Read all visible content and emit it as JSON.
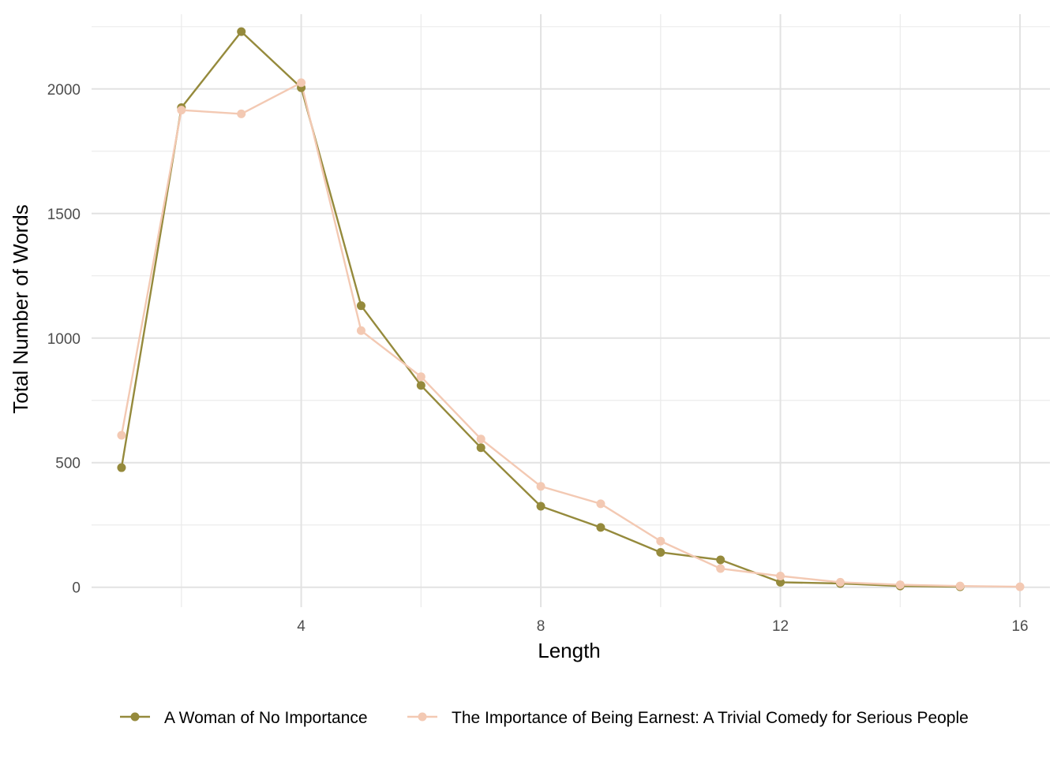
{
  "chart_data": {
    "type": "line",
    "title": "",
    "xlabel": "Length",
    "ylabel": "Total Number of Words",
    "xlim": [
      0.5,
      16.5
    ],
    "ylim": [
      -80,
      2300
    ],
    "x_ticks_major": [
      4,
      8,
      12,
      16
    ],
    "x_ticks_major_labels": [
      "4",
      "8",
      "12",
      "16"
    ],
    "x_ticks_minor": [
      2,
      6,
      10,
      14
    ],
    "y_ticks_major": [
      0,
      500,
      1000,
      1500,
      2000
    ],
    "y_ticks_major_labels": [
      "0",
      "500",
      "1000",
      "1500",
      "2000"
    ],
    "y_ticks_minor": [
      250,
      750,
      1250,
      1750,
      2250
    ],
    "grid": true,
    "legend_position": "bottom",
    "series": [
      {
        "name": "A Woman of No Importance",
        "color": "#958a3c",
        "x": [
          1,
          2,
          3,
          4,
          5,
          6,
          7,
          8,
          9,
          10,
          11,
          12,
          13,
          14,
          15
        ],
        "values": [
          480,
          1925,
          2230,
          2005,
          1130,
          810,
          560,
          325,
          240,
          140,
          110,
          20,
          15,
          5,
          2
        ]
      },
      {
        "name": "The Importance of Being Earnest: A Trivial Comedy for Serious People",
        "color": "#f3c9b3",
        "x": [
          1,
          2,
          3,
          4,
          5,
          6,
          7,
          8,
          9,
          10,
          11,
          12,
          13,
          14,
          15,
          16
        ],
        "values": [
          610,
          1915,
          1900,
          2025,
          1030,
          845,
          595,
          405,
          335,
          185,
          75,
          45,
          20,
          10,
          5,
          2
        ]
      }
    ]
  }
}
